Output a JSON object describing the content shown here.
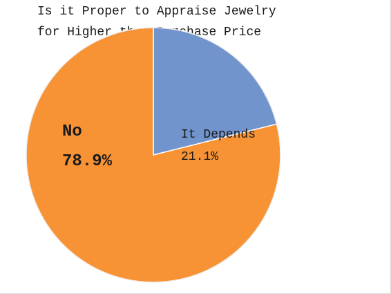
{
  "chart_data": {
    "type": "pie",
    "title_lines": [
      "Is it Proper to Appraise Jewelry",
      "for Higher than Purchase Price"
    ],
    "slices": [
      {
        "label": "It Depends",
        "value": 21.1,
        "value_label": "21.1%",
        "color": "#7294cc"
      },
      {
        "label": "No",
        "value": 78.9,
        "value_label": "78.9%",
        "color": "#f79235"
      }
    ],
    "start_angle_deg": 90,
    "direction": "clockwise",
    "legend": "none",
    "slice_border_color": "#ffffff"
  }
}
